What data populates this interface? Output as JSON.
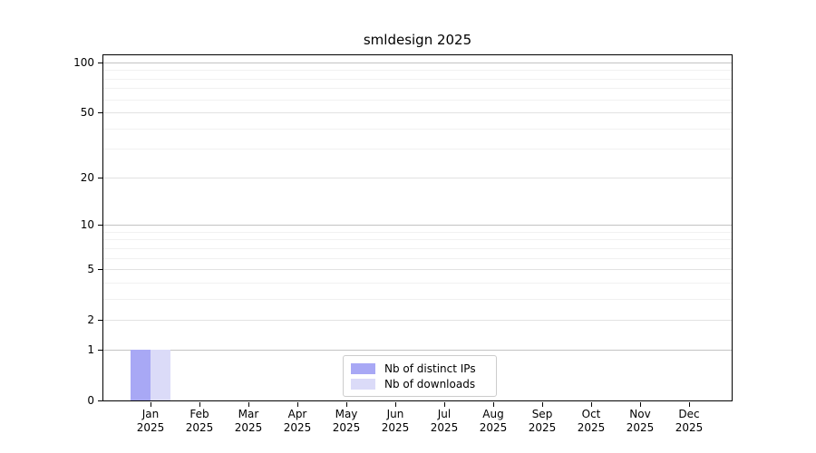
{
  "figure": {
    "background": "#ffffff"
  },
  "chart_data": {
    "type": "bar",
    "title": "smldesign 2025",
    "x": {
      "months": [
        "Jan",
        "Feb",
        "Mar",
        "Apr",
        "May",
        "Jun",
        "Jul",
        "Aug",
        "Sep",
        "Oct",
        "Nov",
        "Dec"
      ],
      "year": "2025"
    },
    "series": [
      {
        "name": "Nb of distinct IPs",
        "color": "#a8a8f5",
        "values": [
          1,
          0,
          0,
          0,
          0,
          0,
          0,
          0,
          0,
          0,
          0,
          0
        ]
      },
      {
        "name": "Nb of downloads",
        "color": "#dbdbf8",
        "values": [
          1,
          0,
          0,
          0,
          0,
          0,
          0,
          0,
          0,
          0,
          0,
          0
        ]
      }
    ],
    "y_axis": {
      "scale": "log1p",
      "max": 100,
      "tick_values": [
        0,
        1,
        2,
        5,
        10,
        20,
        50,
        100
      ],
      "tick_labels": [
        "0",
        "1",
        "2",
        "5",
        "10",
        "20",
        "50",
        "100"
      ],
      "major_tick_values": [
        1,
        10,
        100
      ],
      "minor_gridline_values": [
        3,
        4,
        6,
        7,
        8,
        9,
        30,
        40,
        60,
        70,
        80,
        90
      ]
    },
    "legend": {
      "position": "bottom-center"
    },
    "grid": {
      "major_color": "#c3c3c3",
      "mid_color": "#e2e2e2",
      "minor_color": "#f1f1f1"
    }
  }
}
